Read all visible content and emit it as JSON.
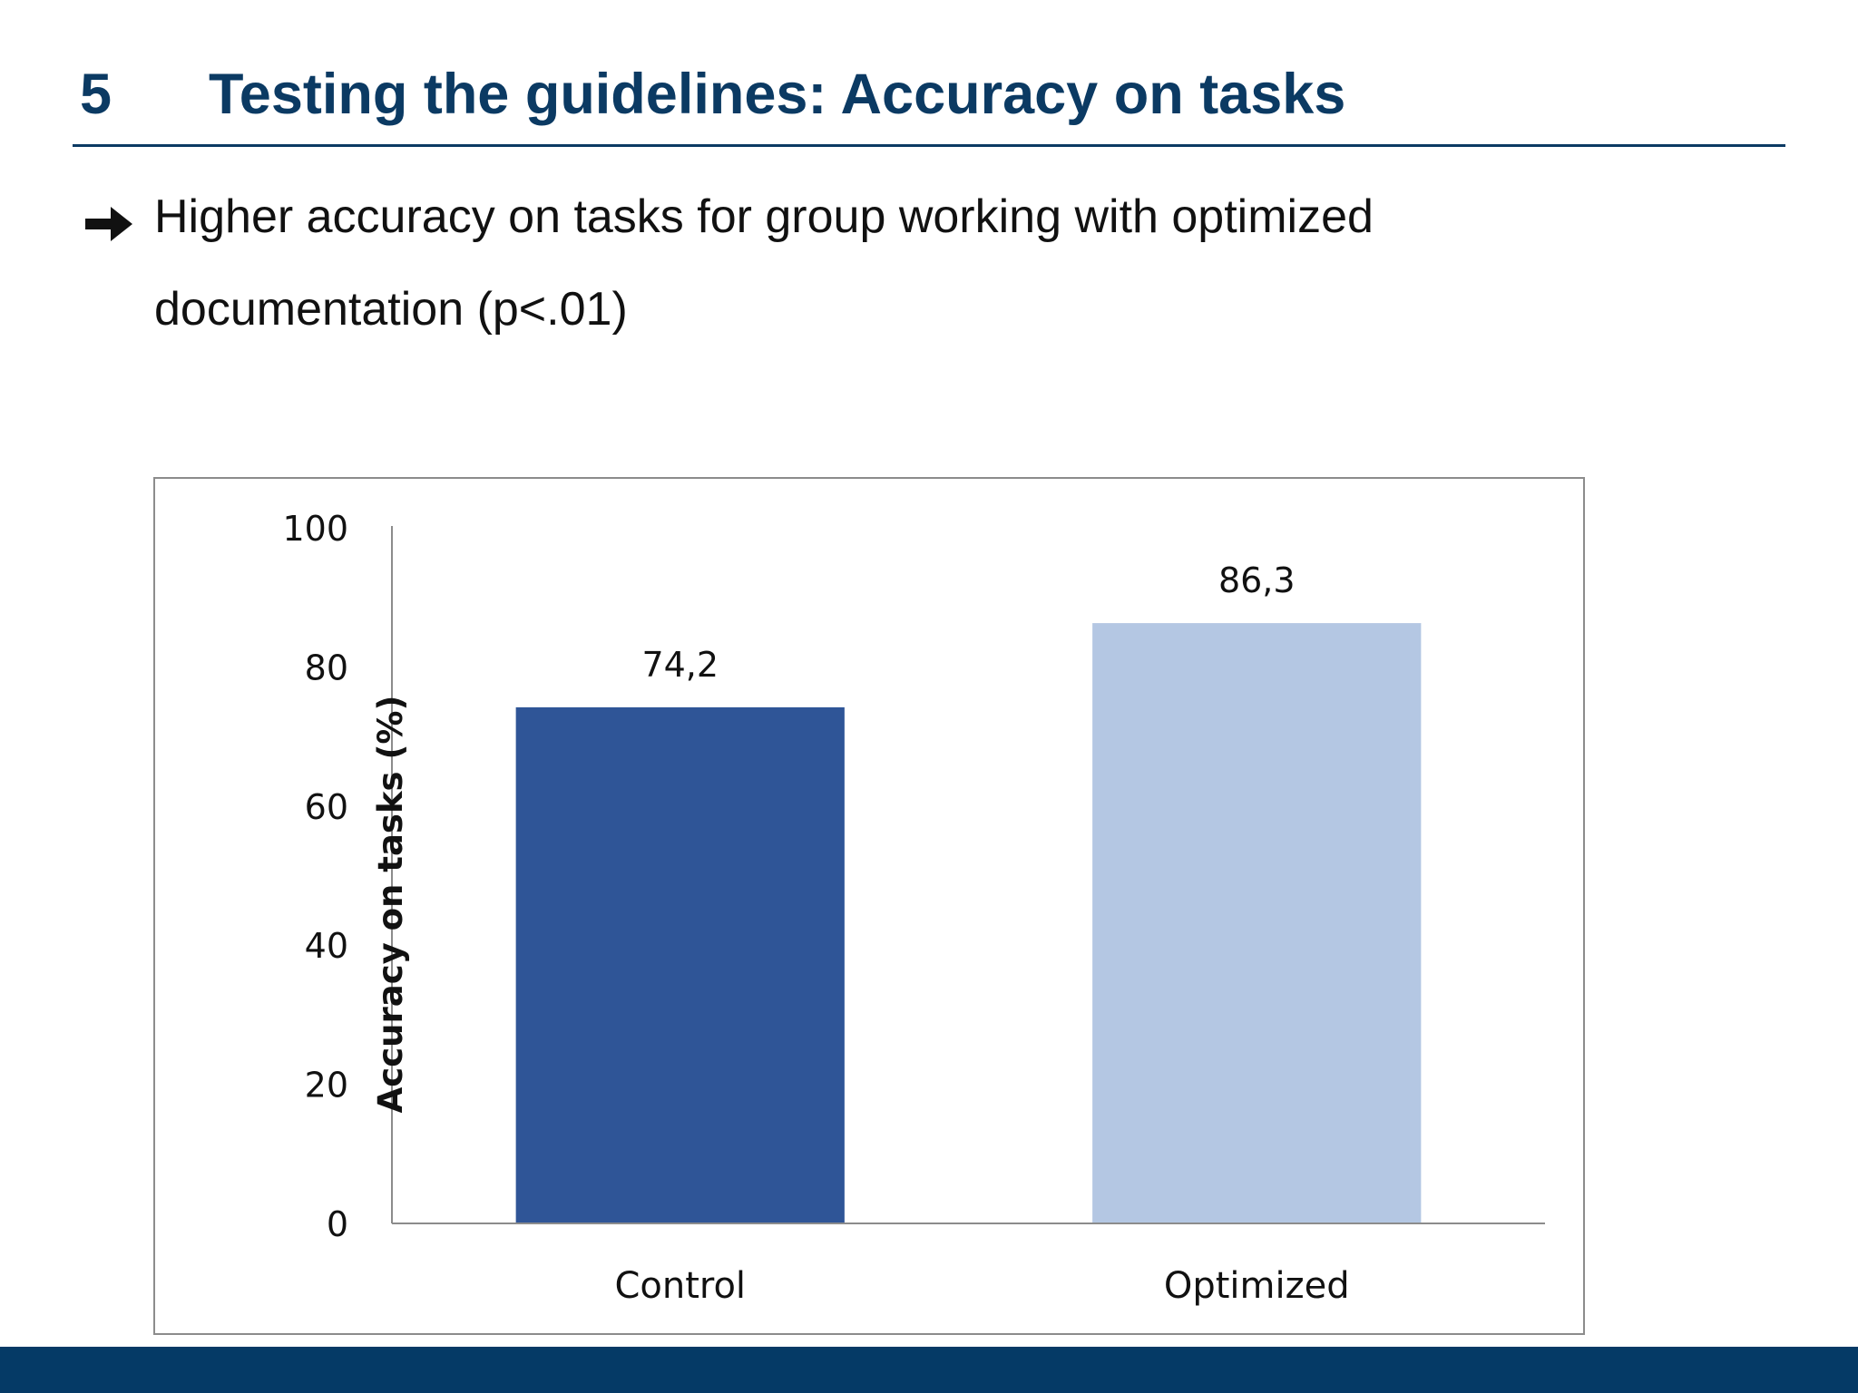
{
  "slide": {
    "section_number": "5",
    "title": "Testing the guidelines: Accuracy on tasks",
    "bullet_text": "Higher accuracy on tasks for group working with optimized documentation (p<.01)",
    "bullet_icon": "arrow-right-icon"
  },
  "colors": {
    "title": "#0b3a63",
    "footer": "#053a66",
    "control_bar": "#2f5597",
    "optimized_bar": "#b4c7e3"
  },
  "chart_data": {
    "type": "bar",
    "categories": [
      "Control",
      "Optimized"
    ],
    "values": [
      74.2,
      86.3
    ],
    "value_labels": [
      "74,2",
      "86,3"
    ],
    "bar_colors": [
      "#2f5597",
      "#b4c7e3"
    ],
    "ylabel": "Accuracy on tasks (%)",
    "xlabel": "",
    "ylim": [
      0,
      100
    ],
    "yticks": [
      0,
      20,
      40,
      60,
      80,
      100
    ],
    "grid": false,
    "legend": "none"
  }
}
